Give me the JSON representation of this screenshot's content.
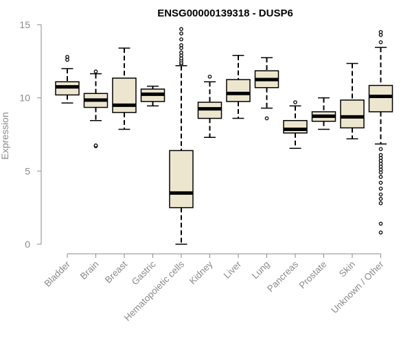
{
  "chart_data": {
    "type": "boxplot",
    "title": "ENSG00000139318 - DUSP6",
    "xlabel": "",
    "ylabel": "Expression",
    "ylim": [
      0,
      15
    ],
    "yticks": [
      0,
      5,
      10,
      15
    ],
    "grid": false,
    "colors": {
      "box_fill": "#ede6cf",
      "median": "#000000",
      "axis": "#8a8a8a"
    },
    "categories": [
      "Bladder",
      "Brain",
      "Breast",
      "Gastric",
      "Hematopoietic cells",
      "Kidney",
      "Liver",
      "Lung",
      "Pancreas",
      "Prostate",
      "Skin",
      "Unknown / Other"
    ],
    "boxes": [
      {
        "label": "Bladder",
        "whisker_low": 9.65,
        "q1": 10.2,
        "median": 10.75,
        "q3": 11.1,
        "whisker_high": 12.0,
        "outliers": [
          12.6,
          12.8
        ]
      },
      {
        "label": "Brain",
        "whisker_low": 8.45,
        "q1": 9.35,
        "median": 9.85,
        "q3": 10.3,
        "whisker_high": 11.65,
        "outliers": [
          6.7,
          6.75,
          11.8
        ]
      },
      {
        "label": "Breast",
        "whisker_low": 7.85,
        "q1": 9.0,
        "median": 9.5,
        "q3": 11.35,
        "whisker_high": 13.4,
        "outliers": []
      },
      {
        "label": "Gastric",
        "whisker_low": 9.45,
        "q1": 9.75,
        "median": 10.25,
        "q3": 10.6,
        "whisker_high": 10.8,
        "outliers": []
      },
      {
        "label": "Hematopoietic cells",
        "whisker_low": 0.0,
        "q1": 2.5,
        "median": 3.5,
        "q3": 6.4,
        "whisker_high": 12.2,
        "outliers": [
          12.3,
          12.4,
          12.55,
          12.7,
          12.9,
          13.1,
          13.4,
          13.6,
          14.0,
          14.4,
          14.7
        ]
      },
      {
        "label": "Kidney",
        "whisker_low": 7.3,
        "q1": 8.6,
        "median": 9.25,
        "q3": 9.7,
        "whisker_high": 11.1,
        "outliers": [
          11.45
        ]
      },
      {
        "label": "Liver",
        "whisker_low": 8.6,
        "q1": 9.75,
        "median": 10.3,
        "q3": 11.25,
        "whisker_high": 12.9,
        "outliers": []
      },
      {
        "label": "Lung",
        "whisker_low": 9.3,
        "q1": 10.7,
        "median": 11.25,
        "q3": 11.85,
        "whisker_high": 12.75,
        "outliers": [
          8.6
        ]
      },
      {
        "label": "Pancreas",
        "whisker_low": 6.55,
        "q1": 7.6,
        "median": 7.85,
        "q3": 8.45,
        "whisker_high": 9.45,
        "outliers": [
          9.7
        ]
      },
      {
        "label": "Prostate",
        "whisker_low": 7.85,
        "q1": 8.4,
        "median": 8.75,
        "q3": 9.05,
        "whisker_high": 10.0,
        "outliers": []
      },
      {
        "label": "Skin",
        "whisker_low": 7.2,
        "q1": 7.95,
        "median": 8.7,
        "q3": 9.85,
        "whisker_high": 12.35,
        "outliers": []
      },
      {
        "label": "Unknown / Other",
        "whisker_low": 6.85,
        "q1": 9.05,
        "median": 10.1,
        "q3": 10.85,
        "whisker_high": 13.45,
        "outliers": [
          0.8,
          1.4,
          2.8,
          3.1,
          3.4,
          3.8,
          4.2,
          4.6,
          4.9,
          5.1,
          5.3,
          5.5,
          5.7,
          5.9,
          6.1,
          6.5,
          13.8,
          14.3,
          14.5
        ]
      }
    ]
  }
}
